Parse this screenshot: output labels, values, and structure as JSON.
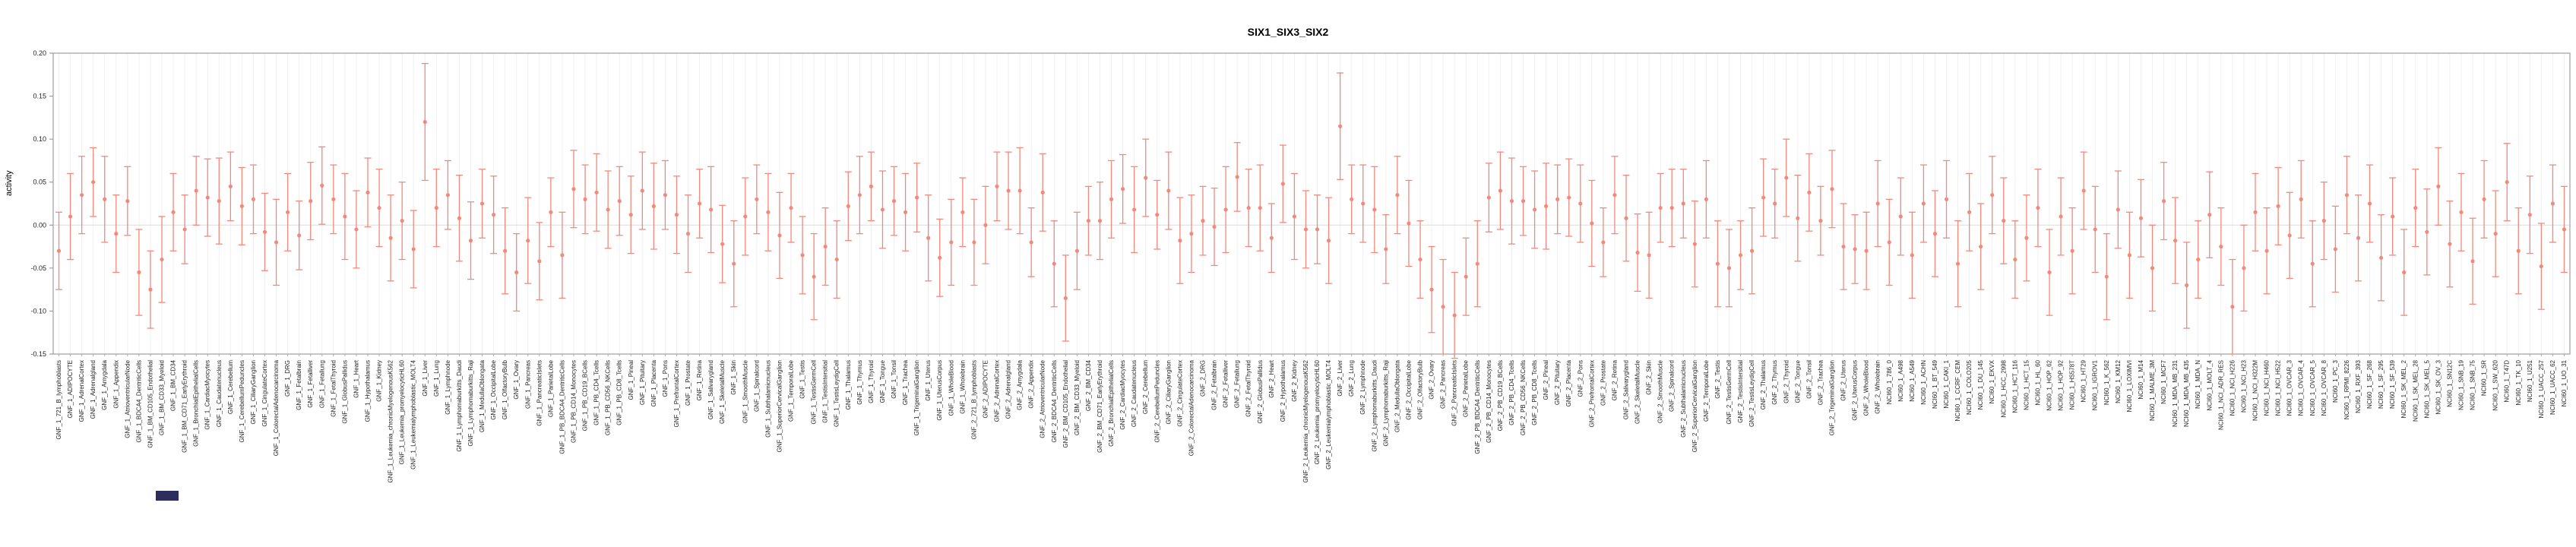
{
  "page": {
    "background": "#ffffff"
  },
  "chart_data": {
    "type": "scatter",
    "subtype": "pointrange-with-error-bars",
    "title": "SIX1_SIX3_SIX2",
    "ylabel": "activity",
    "xlabel": "",
    "ylim": [
      -0.15,
      0.2
    ],
    "yticks": [
      -0.15,
      -0.1,
      -0.05,
      0.0,
      0.05,
      0.1,
      0.15,
      0.2
    ],
    "grid": {
      "vertical_per_category": true,
      "horizontal_zero_line": true
    },
    "legend": "none",
    "point_color": "#f08a7d",
    "axis_color": "#8c8c8c",
    "gridline_color": "#f0f0f0",
    "zero_line_color": "#dcdcdc",
    "label_sets": {
      "gnf": [
        "721_B_lymphoblasts",
        "ADIPOCYTE",
        "AdrenalCortex",
        "Adrenalgland",
        "Amygdala",
        "Appendix",
        "AtrioventricularNode",
        "BDCA4_DentriticCells",
        "BM_CD105_Endothelial",
        "BM_CD33_Myeloid",
        "BM_CD34",
        "BM_CD71_EarlyErythroid",
        "BronchialEpithelialCells",
        "CardiacMyocytes",
        "Caudatenucleus",
        "Cerebellum",
        "CerebellumPeduncles",
        "CiliaryGanglion",
        "CingulateCortex",
        "ColorectalAdenocarcinoma",
        "DRG",
        "Fetalbrain",
        "Fetalliver",
        "Fetallung",
        "FetalThyroid",
        "GlobusPallidus",
        "Heart",
        "Hypothalamus",
        "Kidney",
        "Leukemia_chronicMyelogenousK562",
        "Leukemia_promyelocyticHL60",
        "Leukemialymphoblastic_MOLT4",
        "Liver",
        "Lung",
        "Lymphnode",
        "Lymphomaburkitts_Daudi",
        "Lymphomaburkitts_Raji",
        "MedullaOblongata",
        "OccipitalLobe",
        "OlfactoryBulb",
        "Ovary",
        "Pancreas",
        "PancreaticIslets",
        "ParietalLobe",
        "PB_BDCA4_DentriticCells",
        "PB_CD14_Monocytes",
        "PB_CD19_BCells",
        "PB_CD4_Tcells",
        "PB_CD56_NKCells",
        "PB_CD8_Tcells",
        "Pineal",
        "Pituitary",
        "Placenta",
        "Pons",
        "PrefrontalCortex",
        "Prostate",
        "Retina",
        "Salivarygland",
        "SkeletalMuscle",
        "Skin",
        "SmoothMuscle",
        "Spinalcord",
        "Subthalamicnucleus",
        "SuperiorCervicalGanglion",
        "TemporalLobe",
        "Testis",
        "TestisGermCell",
        "TestisIntersitial",
        "TestisLeydigCell",
        "Thalamus",
        "Thymus",
        "Thyroid",
        "Tongue",
        "Tonsil",
        "Trachea",
        "TrigeminalGanglion",
        "Uterus",
        "UterusCorpus",
        "WholeBlood",
        "Wholebrain"
      ],
      "nci60": [
        "786_0",
        "A498",
        "A549",
        "ACHN",
        "BT_549",
        "CAKI_1",
        "CCRF_CEM",
        "COLO205",
        "DU_145",
        "EKVX",
        "HCC_2998",
        "HCT_116",
        "HCT_15",
        "HL_60",
        "HOP_62",
        "HOP_92",
        "HS578T",
        "HT29",
        "IGROV1",
        "K_562",
        "KM12",
        "LOXIMVI",
        "M14",
        "MALME_3M",
        "MCF7",
        "MDA_MB_231",
        "MDA_MB_435",
        "MDA_N",
        "MOLT_4",
        "NCI_ADR_RES",
        "NCI_H226",
        "NCI_H23",
        "NCI_H322M",
        "NCI_H460",
        "NCI_H522",
        "OVCAR_3",
        "OVCAR_4",
        "OVCAR_5",
        "OVCAR_8",
        "PC_3",
        "RPMI_8226",
        "RXF_393",
        "SF_268",
        "SF_295",
        "SF_539",
        "SK_MEL_2",
        "SK_MEL_28",
        "SK_MEL_5",
        "SK_OV_3",
        "SN12C",
        "SNB_19",
        "SNB_75",
        "SR",
        "SW_620",
        "T47D",
        "TK_10",
        "U251",
        "UACC_257",
        "UACC_62",
        "UO_31"
      ]
    },
    "series": [
      {
        "name": "GNF_1",
        "prefix": "GNF_1_",
        "label_set": "gnf",
        "values": [
          -0.03,
          0.01,
          0.035,
          0.05,
          0.03,
          -0.01,
          0.028,
          -0.055,
          -0.075,
          -0.04,
          0.015,
          -0.005,
          0.04,
          0.032,
          0.028,
          0.045,
          0.022,
          0.03,
          -0.008,
          -0.02,
          0.015,
          -0.012,
          0.028,
          0.046,
          0.03,
          0.01,
          -0.005,
          0.038,
          0.02,
          -0.015,
          0.005,
          -0.028,
          0.12,
          0.02,
          0.035,
          0.008,
          -0.018,
          0.025,
          0.012,
          -0.03,
          -0.055,
          -0.018,
          -0.042,
          0.015,
          -0.035,
          0.042,
          0.03,
          0.038,
          0.018,
          0.028,
          0.012,
          0.04,
          0.022,
          0.035,
          0.012,
          -0.01,
          0.025,
          0.018,
          -0.022,
          -0.045,
          0.01,
          0.03,
          0.015,
          -0.012,
          0.02,
          -0.035,
          -0.06,
          -0.025,
          -0.04,
          0.022,
          0.035,
          0.045,
          0.018,
          0.028,
          0.015,
          0.032,
          -0.015,
          -0.038,
          -0.02,
          0.015
        ],
        "errors": [
          0.045,
          0.05,
          0.045,
          0.04,
          0.05,
          0.045,
          0.04,
          0.05,
          0.045,
          0.05,
          0.045,
          0.04,
          0.04,
          0.045,
          0.05,
          0.04,
          0.045,
          0.04,
          0.045,
          0.05,
          0.045,
          0.04,
          0.045,
          0.045,
          0.04,
          0.05,
          0.045,
          0.04,
          0.045,
          0.05,
          0.045,
          0.045,
          0.068,
          0.045,
          0.04,
          0.05,
          0.045,
          0.04,
          0.045,
          0.05,
          0.045,
          0.05,
          0.045,
          0.04,
          0.05,
          0.045,
          0.04,
          0.045,
          0.045,
          0.04,
          0.045,
          0.045,
          0.05,
          0.04,
          0.045,
          0.045,
          0.04,
          0.05,
          0.045,
          0.05,
          0.045,
          0.04,
          0.045,
          0.05,
          0.04,
          0.045,
          0.05,
          0.045,
          0.045,
          0.04,
          0.045,
          0.04,
          0.045,
          0.04,
          0.045,
          0.04,
          0.05,
          0.045,
          0.05,
          0.04
        ]
      },
      {
        "name": "GNF_2",
        "prefix": "GNF_2_",
        "label_set": "gnf",
        "values": [
          -0.02,
          0.0,
          0.045,
          0.04,
          0.04,
          -0.02,
          0.038,
          -0.045,
          -0.085,
          -0.03,
          0.005,
          0.005,
          0.03,
          0.042,
          0.018,
          0.055,
          0.012,
          0.04,
          -0.018,
          -0.01,
          0.005,
          -0.002,
          0.018,
          0.056,
          0.02,
          0.02,
          -0.015,
          0.048,
          0.01,
          -0.005,
          -0.005,
          -0.018,
          0.115,
          0.03,
          0.025,
          0.018,
          -0.028,
          0.035,
          0.002,
          -0.04,
          -0.075,
          -0.095,
          -0.105,
          -0.06,
          -0.045,
          0.032,
          0.04,
          0.028,
          0.028,
          0.018,
          0.022,
          0.03,
          0.032,
          0.025,
          0.002,
          -0.02,
          0.035,
          0.008,
          -0.032,
          -0.035,
          0.02,
          0.02,
          0.025,
          -0.022,
          0.03,
          -0.045,
          -0.05,
          -0.035,
          -0.03,
          0.032,
          0.025,
          0.055,
          0.008,
          0.038,
          0.005,
          0.042,
          -0.025,
          -0.028,
          -0.03,
          0.025
        ],
        "errors": [
          0.05,
          0.045,
          0.04,
          0.045,
          0.05,
          0.04,
          0.045,
          0.05,
          0.05,
          0.045,
          0.04,
          0.045,
          0.045,
          0.04,
          0.05,
          0.045,
          0.04,
          0.045,
          0.05,
          0.045,
          0.04,
          0.045,
          0.05,
          0.04,
          0.045,
          0.05,
          0.04,
          0.045,
          0.05,
          0.045,
          0.04,
          0.05,
          0.062,
          0.04,
          0.045,
          0.05,
          0.04,
          0.045,
          0.05,
          0.045,
          0.05,
          0.055,
          0.05,
          0.045,
          0.05,
          0.04,
          0.045,
          0.05,
          0.04,
          0.045,
          0.05,
          0.04,
          0.045,
          0.045,
          0.05,
          0.04,
          0.045,
          0.05,
          0.045,
          0.05,
          0.04,
          0.045,
          0.04,
          0.05,
          0.045,
          0.05,
          0.045,
          0.04,
          0.05,
          0.045,
          0.04,
          0.045,
          0.05,
          0.045,
          0.04,
          0.045,
          0.05,
          0.04,
          0.045,
          0.05
        ]
      },
      {
        "name": "NCI60_1",
        "prefix": "NCI60_1_",
        "label_set": "nci60",
        "values": [
          -0.02,
          0.01,
          -0.035,
          0.025,
          -0.01,
          0.03,
          -0.045,
          0.015,
          -0.025,
          0.035,
          0.005,
          -0.04,
          -0.015,
          0.02,
          -0.055,
          0.01,
          -0.03,
          0.04,
          -0.005,
          -0.06,
          0.018,
          -0.035,
          0.008,
          -0.05,
          0.028,
          -0.018,
          -0.07,
          -0.04,
          0.012,
          -0.025,
          -0.095,
          -0.05,
          0.015,
          -0.03,
          0.022,
          -0.012,
          0.03,
          -0.045,
          0.005,
          -0.028,
          0.035,
          -0.015,
          0.025,
          -0.038,
          0.01,
          -0.055,
          0.02,
          -0.008,
          0.045,
          -0.022,
          0.015,
          -0.042,
          0.03,
          -0.01,
          0.05,
          -0.03,
          0.012,
          -0.048,
          0.025,
          -0.005
        ],
        "errors": [
          0.05,
          0.045,
          0.05,
          0.045,
          0.05,
          0.045,
          0.05,
          0.045,
          0.05,
          0.045,
          0.05,
          0.045,
          0.05,
          0.045,
          0.05,
          0.045,
          0.05,
          0.045,
          0.05,
          0.05,
          0.045,
          0.05,
          0.045,
          0.05,
          0.045,
          0.05,
          0.05,
          0.045,
          0.05,
          0.045,
          0.055,
          0.05,
          0.045,
          0.05,
          0.045,
          0.05,
          0.045,
          0.05,
          0.045,
          0.05,
          0.045,
          0.05,
          0.045,
          0.05,
          0.045,
          0.05,
          0.045,
          0.05,
          0.045,
          0.05,
          0.045,
          0.05,
          0.045,
          0.05,
          0.045,
          0.05,
          0.045,
          0.05,
          0.045,
          0.05
        ]
      }
    ]
  }
}
